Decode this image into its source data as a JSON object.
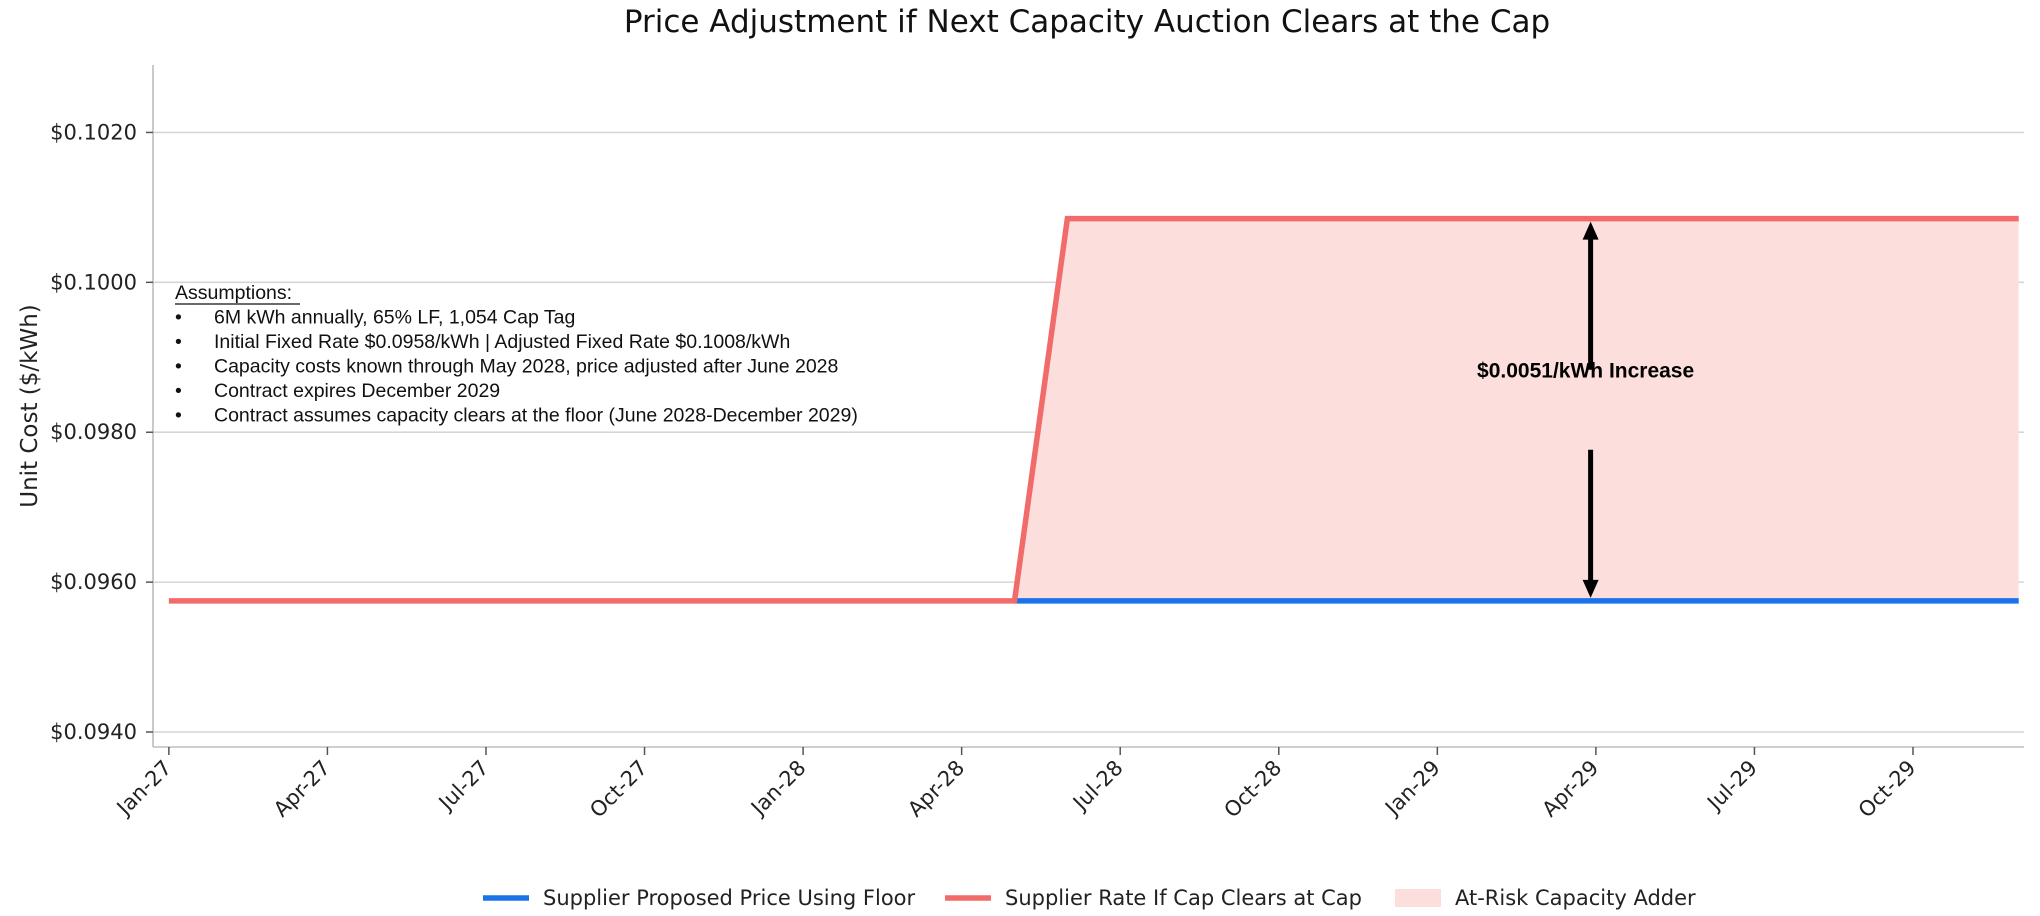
{
  "chart_data": {
    "type": "line",
    "title": "Price Adjustment if Next Capacity Auction Clears at the Cap",
    "xlabel": "",
    "ylabel": "Unit Cost ($/kWh)",
    "ylim": [
      0.0938,
      0.1029
    ],
    "y_ticks": [
      0.094,
      0.096,
      0.098,
      0.1,
      0.102
    ],
    "y_tick_labels": [
      "$0.0940",
      "$0.0960",
      "$0.0980",
      "$0.1000",
      "$0.1020"
    ],
    "x_tick_labels": [
      "Jan-27",
      "Apr-27",
      "Jul-27",
      "Oct-27",
      "Jan-28",
      "Apr-28",
      "Jul-28",
      "Oct-28",
      "Jan-29",
      "Apr-29",
      "Jul-29",
      "Oct-29"
    ],
    "x_tick_months": [
      0,
      3,
      6,
      9,
      12,
      15,
      18,
      21,
      24,
      27,
      30,
      33
    ],
    "xlim_months": [
      -0.3,
      35.1
    ],
    "grid": "horizontal",
    "series": [
      {
        "name": "Supplier Proposed Price Using Floor",
        "color": "#1a73e8",
        "x_months": [
          16,
          35
        ],
        "values": [
          0.09575,
          0.09575
        ]
      },
      {
        "name": "Supplier Rate If Cap Clears at Cap",
        "color": "#f26b6b",
        "x_months": [
          0,
          16,
          17,
          35
        ],
        "values": [
          0.09575,
          0.09575,
          0.10085,
          0.10085
        ]
      }
    ],
    "fill": {
      "name": "At-Risk Capacity Adder",
      "color": "#fcdedd",
      "x_months": [
        16,
        17,
        35
      ],
      "upper": [
        0.09575,
        0.10085,
        0.10085
      ],
      "lower": [
        0.09575,
        0.09575,
        0.09575
      ]
    },
    "annotation": {
      "text": "$0.0051/kWh Increase",
      "x_month": 26.9,
      "from": 0.09575,
      "to": 0.10085
    },
    "assumptions": {
      "heading": "Assumptions:",
      "bullet": "•",
      "items": [
        "6M kWh annually, 65% LF, 1,054 Cap Tag",
        "Initial Fixed Rate $0.0958/kWh | Adjusted Fixed Rate $0.1008/kWh",
        "Capacity costs known through May 2028, price adjusted after June 2028",
        "Contract expires December 2029",
        "Contract assumes capacity clears at the floor (June 2028-December 2029)"
      ]
    },
    "legend": {
      "position": "bottom-center",
      "entries": [
        {
          "label": "Supplier Proposed Price Using Floor",
          "kind": "line",
          "color": "#1a73e8"
        },
        {
          "label": "Supplier Rate If Cap Clears at Cap",
          "kind": "line",
          "color": "#f26b6b"
        },
        {
          "label": "At-Risk Capacity Adder",
          "kind": "patch",
          "color": "#fcdedd"
        }
      ]
    }
  }
}
